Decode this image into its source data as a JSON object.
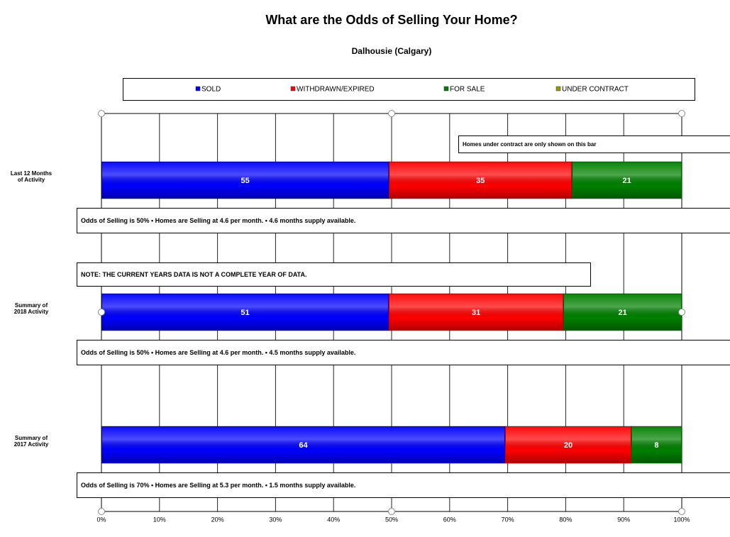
{
  "chart_data": {
    "type": "bar",
    "orientation": "horizontal",
    "stacked": "percent",
    "title": "What are the Odds of Selling Your Home?",
    "subtitle": "Dalhousie (Calgary)",
    "categories": [
      "Last 12 Months of Activity",
      "Summary of 2018 Activity",
      "Summary of 2017 Activity"
    ],
    "series": [
      {
        "name": "SOLD",
        "color": "#0000ff",
        "values": [
          55,
          51,
          64
        ]
      },
      {
        "name": "WITHDRAWN/EXPIRED",
        "color": "#ff0000",
        "values": [
          35,
          31,
          20
        ]
      },
      {
        "name": "FOR SALE",
        "color": "#008000",
        "values": [
          21,
          21,
          8
        ]
      },
      {
        "name": "UNDER CONTRACT",
        "color": "#999900",
        "values": [
          null,
          null,
          null
        ]
      }
    ],
    "xlim": [
      0,
      100
    ],
    "xticks": [
      {
        "value": 0,
        "label": "0%"
      },
      {
        "value": 10,
        "label": "10%"
      },
      {
        "value": 20,
        "label": "20%"
      },
      {
        "value": 30,
        "label": "30%"
      },
      {
        "value": 40,
        "label": "40%"
      },
      {
        "value": 50,
        "label": "50%"
      },
      {
        "value": 60,
        "label": "60%"
      },
      {
        "value": 70,
        "label": "70%"
      },
      {
        "value": 80,
        "label": "80%"
      },
      {
        "value": 90,
        "label": "90%"
      },
      {
        "value": 100,
        "label": "100%"
      }
    ],
    "grid": true,
    "legend": "top",
    "bar_notes": [
      "Odds of Selling is 50%  •  Homes are Selling at 4.6 per month.  •  4.6 months supply available.",
      "Odds of Selling is 50%  •  Homes are Selling at 4.6 per month.  •  4.5 months supply available.",
      "Odds of Selling is 70%  •  Homes are Selling at 5.3 per month.  •  1.5 months supply available."
    ],
    "annotations": [
      "Homes under contract are only shown on this bar",
      "NOTE: THE CURRENT YEARS DATA IS NOT A COMPLETE YEAR OF DATA."
    ]
  }
}
